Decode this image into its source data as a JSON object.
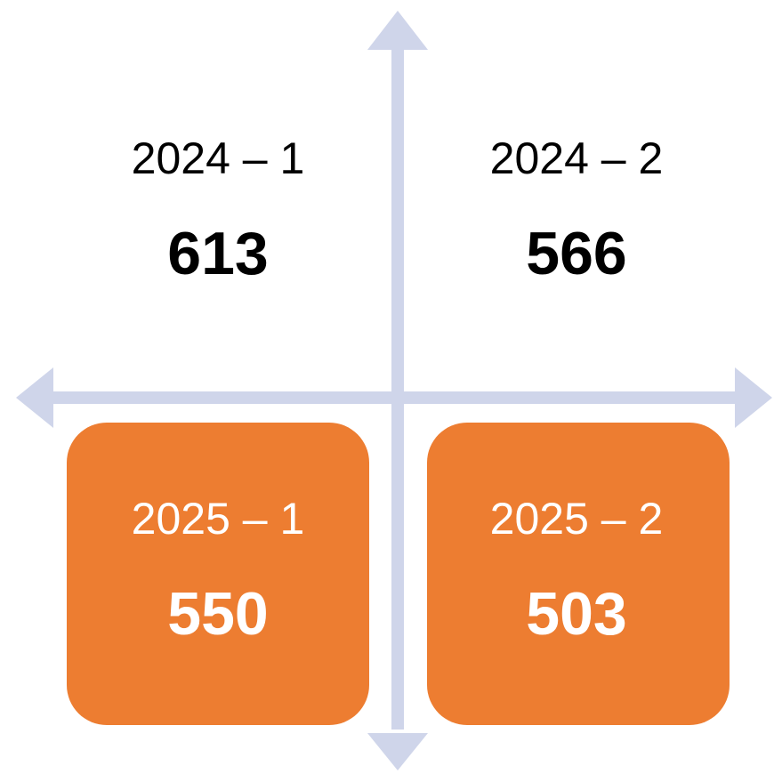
{
  "quadrants": [
    {
      "label": "2024 – 1",
      "value": 613
    },
    {
      "label": "2024 – 2",
      "value": 566
    },
    {
      "label": "2025 – 1",
      "value": 550
    },
    {
      "label": "2025 – 2",
      "value": 503
    }
  ]
}
